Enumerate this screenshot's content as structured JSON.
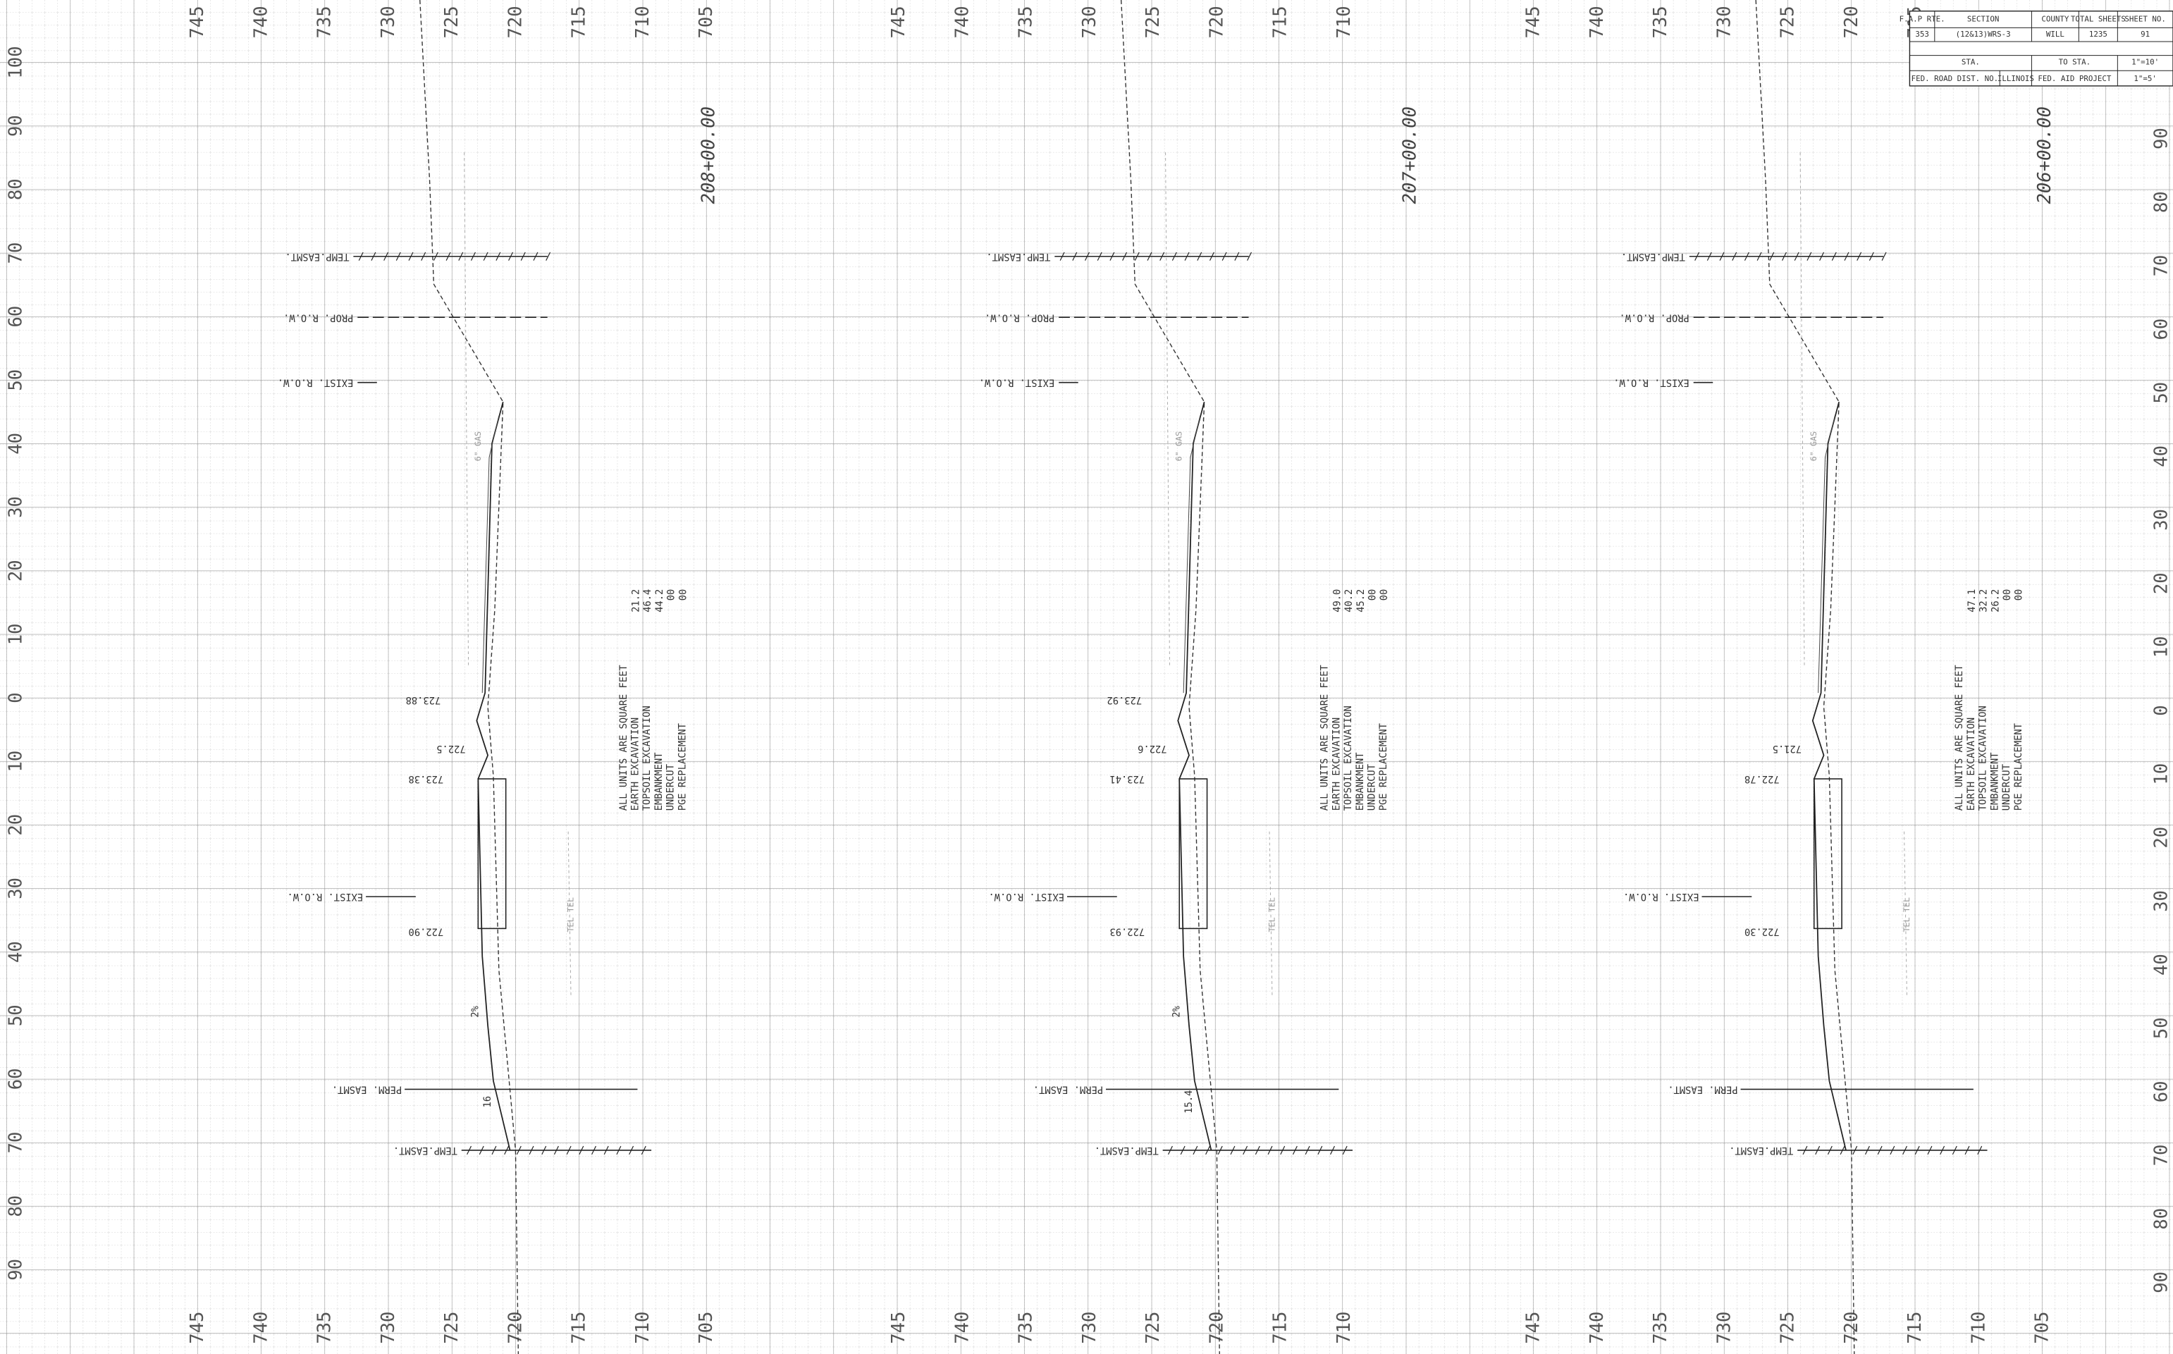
{
  "title_block": {
    "rows": [
      [
        "F.A.P RTE.",
        "SECTION",
        "COUNTY",
        "TOTAL SHEETS",
        "SHEET NO."
      ],
      [
        "353",
        "(12&13)WRS-3",
        "WILL",
        "1235",
        "91"
      ],
      [
        "STA.",
        "TO STA.",
        "1\"=10'"
      ],
      [
        "FED. ROAD DIST. NO.",
        "ILLINOIS",
        "FED. AID PROJECT",
        "1\"=5'"
      ]
    ]
  },
  "left_offsets": [
    "100",
    "90",
    "80",
    "70",
    "60",
    "50",
    "40",
    "30",
    "20",
    "10",
    "0",
    "10",
    "20",
    "30",
    "40",
    "50",
    "60",
    "70",
    "80",
    "90"
  ],
  "right_offsets": [
    "90",
    "80",
    "70",
    "60",
    "50",
    "40",
    "30",
    "20",
    "10",
    "0",
    "10",
    "20",
    "30",
    "40",
    "50",
    "60",
    "70",
    "80",
    "90"
  ],
  "sections": [
    {
      "station": "208+00.00",
      "top_elevations": [
        "745",
        "740",
        "735",
        "730",
        "725",
        "720",
        "715",
        "710",
        "705"
      ],
      "bottom_elevations": [
        "745",
        "740",
        "735",
        "730",
        "725",
        "720",
        "715",
        "710",
        "705"
      ],
      "labels": {
        "temp_easmt_top": "TEMP.EASMT.",
        "prop_row": "PROP. R.O.W.",
        "exist_row_top": "EXIST. R.O.W.",
        "exist_row_bottom": "EXIST. R.O.W.",
        "perm_easmt": "PERM. EASMT.",
        "temp_easmt_bottom": "TEMP.EASMT."
      },
      "elevations": [
        "723.88",
        "722.5",
        "723.38",
        "722.90"
      ],
      "slopes": [
        "2%",
        "16"
      ],
      "utilities": [
        "6\" GAS",
        "TEL TEL"
      ],
      "quantities": {
        "headings": [
          "ALL UNITS ARE SQUARE FEET",
          "EARTH EXCAVATION",
          "TOPSOIL EXCAVATION",
          "EMBANKMENT",
          "UNDERCUT",
          "PGE REPLACEMENT"
        ],
        "values": [
          "21.2",
          "46.4",
          "44.2",
          "00",
          "00"
        ]
      }
    },
    {
      "station": "207+00.00",
      "top_elevations": [
        "745",
        "740",
        "735",
        "730",
        "725",
        "720",
        "715",
        "710"
      ],
      "bottom_elevations": [
        "745",
        "740",
        "735",
        "730",
        "725",
        "720",
        "715",
        "710"
      ],
      "labels": {
        "temp_easmt_top": "TEMP.EASMT.",
        "prop_row": "PROP. R.O.W.",
        "exist_row_top": "EXIST. R.O.W.",
        "exist_row_bottom": "EXIST. R.O.W.",
        "perm_easmt": "PERM. EASMT.",
        "temp_easmt_bottom": "TEMP.EASMT."
      },
      "elevations": [
        "723.92",
        "722.6",
        "723.41",
        "722.93"
      ],
      "slopes": [
        "2%",
        "15.4"
      ],
      "utilities": [
        "6\" GAS",
        "TEL TEL"
      ],
      "quantities": {
        "headings": [
          "ALL UNITS ARE SQUARE FEET",
          "EARTH EXCAVATION",
          "TOPSOIL EXCAVATION",
          "EMBANKMENT",
          "UNDERCUT",
          "PGE REPLACEMENT"
        ],
        "values": [
          "49.0",
          "40.2",
          "45.2",
          "00",
          "00"
        ]
      }
    },
    {
      "station": "206+00.00",
      "top_elevations": [
        "745",
        "740",
        "735",
        "730",
        "725",
        "720",
        "715"
      ],
      "bottom_elevations": [
        "745",
        "740",
        "735",
        "730",
        "725",
        "720",
        "715",
        "710",
        "705"
      ],
      "labels": {
        "temp_easmt_top": "TEMP.EASMT.",
        "prop_row": "PROP. R.O.W.",
        "exist_row_top": "EXIST. R.O.W.",
        "exist_row_bottom": "EXIST. R.O.W.",
        "perm_easmt": "PERM. EASMT.",
        "temp_easmt_bottom": "TEMP.EASMT."
      },
      "elevations": [
        "721.5",
        "722.78",
        "722.30"
      ],
      "slopes": [],
      "utilities": [
        "6\" GAS",
        "TEL TEL"
      ],
      "quantities": {
        "headings": [
          "ALL UNITS ARE SQUARE FEET",
          "EARTH EXCAVATION",
          "TOPSOIL EXCAVATION",
          "EMBANKMENT",
          "UNDERCUT",
          "PGE REPLACEMENT"
        ],
        "values": [
          "47.1",
          "32.2",
          "26.2",
          "00",
          "00"
        ]
      }
    }
  ]
}
